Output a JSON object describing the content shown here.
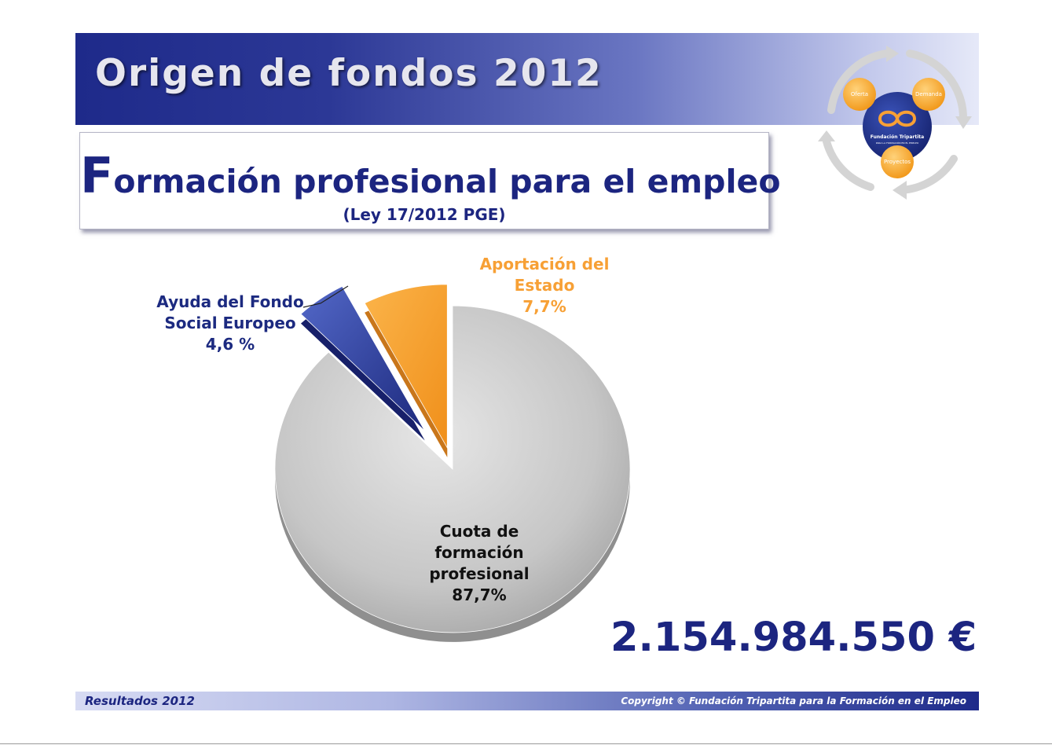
{
  "header": {
    "title": "Origen de fondos 2012"
  },
  "logo": {
    "labels": [
      "Oferta",
      "Demanda",
      "Proyectos"
    ],
    "org_line1": "Fundación Tripartita",
    "org_line2": "PARA LA FORMACIÓN EN EL EMPLEO"
  },
  "subtitle": {
    "first_letter": "F",
    "rest": "ormación profesional para el empleo",
    "note": "(Ley 17/2012 PGE)"
  },
  "chart_data": {
    "type": "pie",
    "title": "",
    "slices": [
      {
        "label": "Cuota de formación profesional",
        "value": 87.7,
        "display": "87,7%",
        "color": "#c8c8c8"
      },
      {
        "label": "Ayuda del Fondo Social Europeo",
        "value": 4.6,
        "display": "4,6 %",
        "color": "#2b3d99"
      },
      {
        "label": "Aportación del Estado",
        "value": 7.7,
        "display": "7,7%",
        "color": "#f7a035"
      }
    ],
    "labels": {
      "estado": [
        "Aportación del",
        "Estado",
        "7,7%"
      ],
      "fse": [
        "Ayuda del Fondo",
        "Social Europeo",
        "4,6 %"
      ],
      "cuota": [
        "Cuota de",
        "formación",
        "profesional",
        "87,7%"
      ]
    }
  },
  "total": "2.154.984.550 €",
  "footer": {
    "left": "Resultados 2012",
    "right": "Copyright © Fundación Tripartita para la  Formación en el Empleo"
  }
}
